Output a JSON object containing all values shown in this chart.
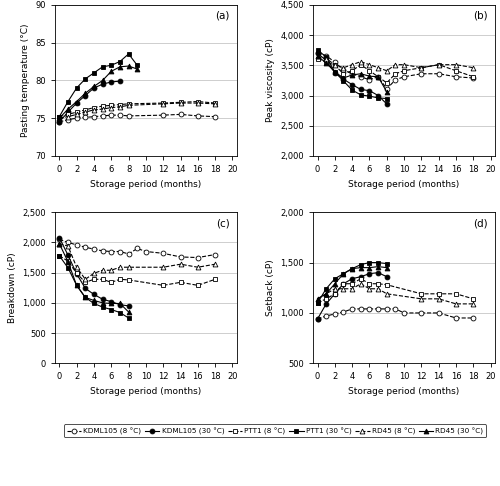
{
  "x_all": [
    0,
    1,
    2,
    3,
    4,
    5,
    6,
    7,
    8,
    9,
    10,
    12,
    14,
    16,
    18
  ],
  "pasting_temp_a": {
    "KDML105_8": [
      74.5,
      74.8,
      75.0,
      75.1,
      75.2,
      75.3,
      75.4,
      75.4,
      75.3,
      null,
      null,
      75.4,
      75.5,
      75.3,
      75.2
    ],
    "KDML105_30": [
      74.5,
      75.8,
      77.0,
      78.0,
      79.0,
      79.5,
      79.8,
      79.9,
      null,
      null,
      null,
      null,
      null,
      null,
      null
    ],
    "PTT1_8": [
      75.2,
      75.5,
      75.8,
      76.1,
      76.4,
      76.6,
      76.7,
      76.8,
      76.9,
      null,
      null,
      77.0,
      77.1,
      77.2,
      77.0
    ],
    "PTT1_30": [
      75.2,
      77.2,
      79.0,
      80.2,
      81.0,
      81.8,
      82.0,
      82.5,
      83.5,
      82.0,
      null,
      null,
      null,
      null,
      null
    ],
    "RD45_8": [
      75.0,
      75.2,
      75.5,
      75.8,
      76.1,
      76.2,
      76.4,
      76.5,
      76.7,
      null,
      null,
      76.9,
      77.0,
      77.0,
      76.9
    ],
    "RD45_30": [
      75.0,
      76.2,
      77.2,
      78.3,
      79.2,
      80.0,
      81.2,
      81.8,
      81.9,
      81.5,
      null,
      null,
      null,
      null,
      null
    ]
  },
  "peak_visc_b": {
    "KDML105_8": [
      3700,
      3660,
      3550,
      3420,
      3360,
      3310,
      3260,
      3310,
      3110,
      3260,
      3310,
      3360,
      3360,
      3310,
      3290
    ],
    "KDML105_30": [
      3700,
      3580,
      3380,
      3270,
      3180,
      3100,
      3080,
      3000,
      2860,
      null,
      null,
      null,
      null,
      null,
      null
    ],
    "PTT1_8": [
      3600,
      3560,
      3500,
      3360,
      3410,
      3510,
      3410,
      3310,
      3210,
      3360,
      3410,
      3460,
      3510,
      3410,
      3310
    ],
    "PTT1_30": [
      3750,
      3640,
      3390,
      3240,
      3090,
      3010,
      2990,
      2960,
      2950,
      null,
      null,
      null,
      null,
      null,
      null
    ],
    "RD45_8": [
      3650,
      3610,
      3510,
      3460,
      3510,
      3560,
      3510,
      3460,
      3410,
      3510,
      3510,
      3460,
      3510,
      3510,
      3460
    ],
    "RD45_30": [
      3650,
      3540,
      3390,
      3290,
      3340,
      3360,
      3320,
      3310,
      3060,
      null,
      null,
      null,
      null,
      null,
      null
    ]
  },
  "breakdown_c": {
    "KDML105_8": [
      2050,
      2000,
      1960,
      1920,
      1890,
      1860,
      1850,
      1850,
      1810,
      1900,
      1850,
      1820,
      1760,
      1750,
      1800
    ],
    "KDML105_30": [
      2080,
      1790,
      1480,
      1240,
      1140,
      1060,
      1020,
      970,
      950,
      null,
      null,
      null,
      null,
      null,
      null
    ],
    "PTT1_8": [
      1780,
      1690,
      1490,
      1340,
      1390,
      1390,
      1340,
      1390,
      1380,
      null,
      null,
      1290,
      1340,
      1290,
      1390
    ],
    "PTT1_30": [
      1780,
      1580,
      1290,
      1090,
      990,
      930,
      890,
      840,
      750,
      null,
      null,
      null,
      null,
      null,
      null
    ],
    "RD45_8": [
      1980,
      1940,
      1590,
      1390,
      1490,
      1540,
      1540,
      1590,
      1590,
      null,
      null,
      1590,
      1640,
      1590,
      1640
    ],
    "RD45_30": [
      1980,
      1680,
      1290,
      1090,
      1040,
      1000,
      990,
      990,
      850,
      null,
      null,
      null,
      null,
      null,
      null
    ]
  },
  "setback_d": {
    "KDML105_8": [
      940,
      970,
      990,
      1010,
      1040,
      1040,
      1040,
      1040,
      1040,
      1040,
      1000,
      1000,
      1000,
      950,
      950
    ],
    "KDML105_30": [
      940,
      1090,
      1190,
      1290,
      1340,
      1360,
      1390,
      1400,
      1360,
      null,
      null,
      null,
      null,
      null,
      null
    ],
    "PTT1_8": [
      1100,
      1140,
      1190,
      1290,
      1290,
      1340,
      1290,
      1290,
      1280,
      null,
      null,
      1190,
      1190,
      1190,
      1140
    ],
    "PTT1_30": [
      1100,
      1240,
      1340,
      1390,
      1440,
      1480,
      1500,
      1500,
      1490,
      null,
      null,
      null,
      null,
      null,
      null
    ],
    "RD45_8": [
      1140,
      1190,
      1240,
      1240,
      1240,
      1290,
      1240,
      1240,
      1190,
      null,
      null,
      1140,
      1140,
      1090,
      1090
    ],
    "RD45_30": [
      1140,
      1190,
      1290,
      1390,
      1440,
      1450,
      1450,
      1460,
      1450,
      null,
      null,
      null,
      null,
      null,
      null
    ]
  },
  "legend_labels": [
    "KDML105 (8 °C)",
    "KDML105 (30 °C)",
    "PTT1 (8 °C)",
    "PTT1 (30 °C)",
    "RD45 (8 °C)",
    "RD45 (30 °C)"
  ]
}
